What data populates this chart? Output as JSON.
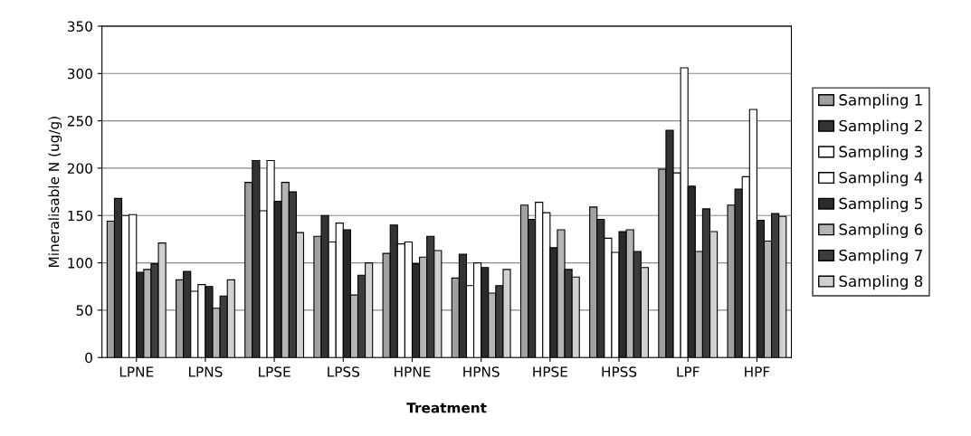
{
  "chart_data": {
    "type": "bar",
    "xlabel": "Treatment",
    "ylabel": "Mineralisable N (ug/g)",
    "categories": [
      "LPNE",
      "LPNS",
      "LPSE",
      "LPSS",
      "HPNE",
      "HPNS",
      "HPSE",
      "HPSS",
      "LPF",
      "HPF"
    ],
    "series": [
      {
        "name": "Sampling 1",
        "color": "#a0a0a0",
        "values": [
          144,
          82,
          185,
          128,
          110,
          84,
          161,
          159,
          199,
          161
        ]
      },
      {
        "name": "Sampling 2",
        "color": "#333333",
        "values": [
          168,
          91,
          208,
          150,
          140,
          109,
          146,
          146,
          240,
          178
        ]
      },
      {
        "name": "Sampling 3",
        "color": "#ffffff",
        "values": [
          150,
          70,
          155,
          122,
          120,
          76,
          164,
          126,
          195,
          191
        ]
      },
      {
        "name": "Sampling 4",
        "color": "#ffffff",
        "values": [
          151,
          77,
          208,
          142,
          122,
          100,
          153,
          111,
          306,
          262
        ]
      },
      {
        "name": "Sampling 5",
        "color": "#2a2a2a",
        "values": [
          90,
          75,
          165,
          135,
          99,
          95,
          116,
          133,
          181,
          145
        ]
      },
      {
        "name": "Sampling 6",
        "color": "#b4b4b4",
        "values": [
          93,
          52,
          185,
          66,
          106,
          68,
          135,
          135,
          112,
          123
        ]
      },
      {
        "name": "Sampling 7",
        "color": "#3c3c3c",
        "values": [
          99,
          65,
          175,
          87,
          128,
          76,
          93,
          112,
          157,
          152
        ]
      },
      {
        "name": "Sampling 8",
        "color": "#d0d0d0",
        "values": [
          121,
          82,
          132,
          100,
          113,
          93,
          85,
          95,
          133,
          149
        ]
      }
    ],
    "ylim": [
      0,
      350
    ],
    "yticks": [
      0,
      50,
      100,
      150,
      200,
      250,
      300,
      350
    ],
    "grid": "y",
    "legend": "right"
  }
}
